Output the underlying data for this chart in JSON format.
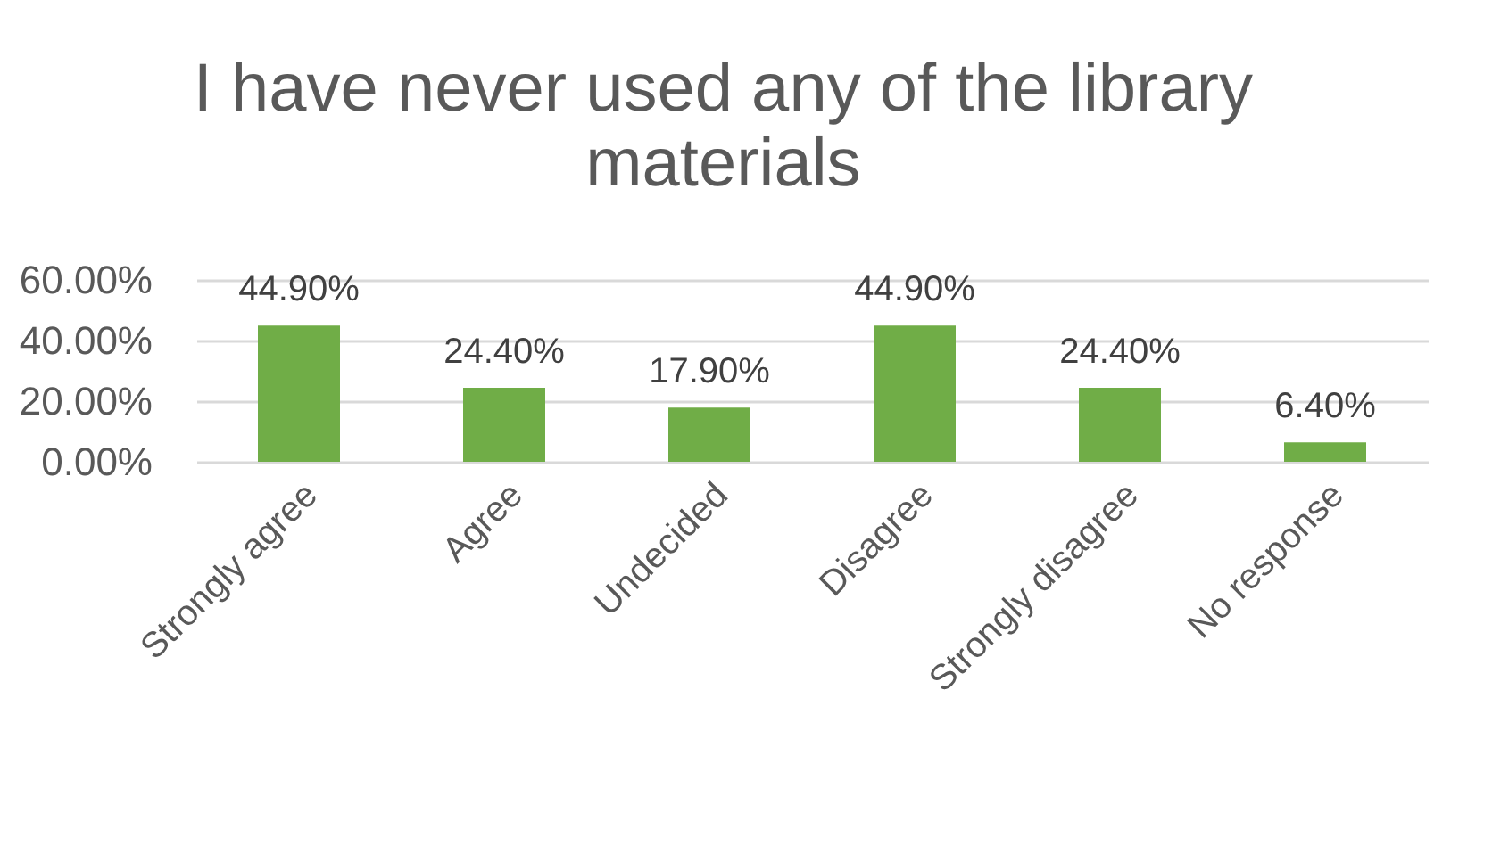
{
  "chart_data": {
    "type": "bar",
    "title": "I have never used any of the library materials",
    "categories": [
      "Strongly agree",
      "Agree",
      "Undecided",
      "Disagree",
      "Strongly disagree",
      "No response"
    ],
    "values": [
      44.9,
      24.4,
      17.9,
      44.9,
      24.4,
      6.4
    ],
    "value_labels": [
      "44.90%",
      "24.40%",
      "17.90%",
      "44.90%",
      "24.40%",
      "6.40%"
    ],
    "color": "#70ad47",
    "ylim": [
      0,
      60
    ],
    "yticks": [
      {
        "value": 0,
        "label": "0.00%"
      },
      {
        "value": 20,
        "label": "20.00%"
      },
      {
        "value": 40,
        "label": "40.00%"
      },
      {
        "value": 60,
        "label": "60.00%"
      }
    ],
    "grid": "y",
    "legend": false
  }
}
